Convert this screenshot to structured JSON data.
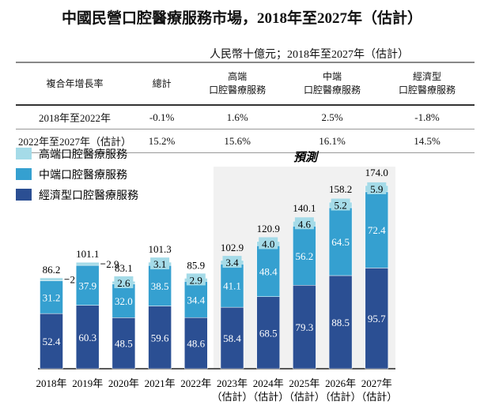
{
  "title": "中國民營口腔醫療服務市場，2018年至2027年（估計）",
  "unit": "人民幣十億元；2018年至2027年（估計）",
  "table": {
    "headers": [
      "複合年增長率",
      "總計",
      "高端\n口腔醫療服務",
      "中端\n口腔醫療服務",
      "經濟型\n口腔醫療服務"
    ],
    "rows": [
      [
        "2018年至2022年",
        "-0.1%",
        "1.6%",
        "2.5%",
        "-1.8%"
      ],
      [
        "2022年至2027年（估計）",
        "15.2%",
        "15.6%",
        "16.1%",
        "14.5%"
      ]
    ]
  },
  "chart_data": {
    "type": "bar",
    "stacked": true,
    "categories": [
      "2018年",
      "2019年",
      "2020年",
      "2021年",
      "2022年",
      "2023年\n（估計）",
      "2024年\n（估計）",
      "2025年\n（估計）",
      "2026年\n（估計）",
      "2027年\n（估計）"
    ],
    "series": [
      {
        "name": "經濟型口腔醫療服務",
        "color": "#2b4f93",
        "values": [
          52.4,
          60.3,
          48.5,
          59.6,
          48.6,
          58.4,
          68.5,
          79.3,
          88.5,
          95.7
        ]
      },
      {
        "name": "中端口腔醫療服務",
        "color": "#35a0d0",
        "values": [
          31.2,
          37.9,
          32.0,
          38.5,
          34.4,
          41.1,
          48.4,
          56.2,
          64.5,
          72.4
        ]
      },
      {
        "name": "高端口腔醫療服務",
        "color": "#a5dbe8",
        "values": [
          2.7,
          2.9,
          2.6,
          3.1,
          2.9,
          3.4,
          4.0,
          4.6,
          5.2,
          5.9
        ]
      }
    ],
    "totals": [
      "86.2",
      "101.1",
      "83.1",
      "101.3",
      "85.9",
      "102.9",
      "120.9",
      "140.1",
      "158.2",
      "174.0"
    ],
    "forecast_label": "預測",
    "forecast_start_index": 5,
    "legend": "top-left",
    "ylim": [
      0,
      174
    ]
  }
}
